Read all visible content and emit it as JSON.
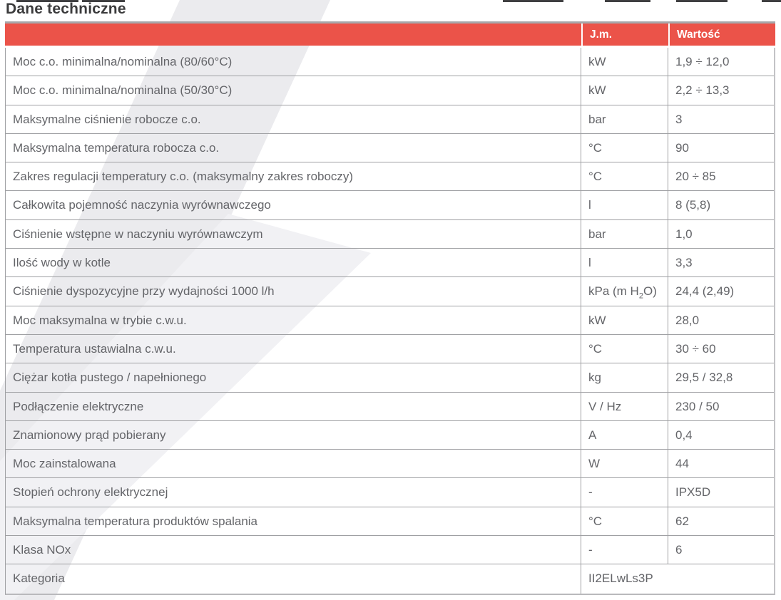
{
  "page": {
    "title": "Dane techniczne"
  },
  "table": {
    "headers": {
      "param": "",
      "unit": "J.m.",
      "value": "Wartość"
    },
    "colors": {
      "header_bg": "#eb5349",
      "header_text": "#ffffff",
      "body_text": "#646569",
      "grid_line": "#9fa0a3",
      "watermark_band": "#ebebee",
      "watermark_band_light": "#f1f1f4"
    },
    "rows": [
      {
        "param": "Moc c.o. minimalna/nominalna (80/60°C)",
        "unit": "kW",
        "value": "1,9 ÷ 12,0",
        "merged": false
      },
      {
        "param": "Moc c.o. minimalna/nominalna (50/30°C)",
        "unit": "kW",
        "value": "2,2 ÷ 13,3",
        "merged": false
      },
      {
        "param": "Maksymalne ciśnienie robocze c.o.",
        "unit": "bar",
        "value": "3",
        "merged": false
      },
      {
        "param": "Maksymalna temperatura robocza c.o.",
        "unit": "°C",
        "value": "90",
        "merged": false
      },
      {
        "param": "Zakres regulacji temperatury c.o. (maksymalny zakres roboczy)",
        "unit": "°C",
        "value": "20 ÷ 85",
        "merged": false
      },
      {
        "param": "Całkowita pojemność naczynia wyrównawczego",
        "unit": "l",
        "value": "8 (5,8)",
        "merged": false
      },
      {
        "param": "Ciśnienie wstępne w naczyniu wyrównawczym",
        "unit": "bar",
        "value": "1,0",
        "merged": false
      },
      {
        "param": "Ilość wody w kotle",
        "unit": "l",
        "value": "3,3",
        "merged": false
      },
      {
        "param": "Ciśnienie dyspozycyjne przy wydajności 1000 l/h",
        "unit": "kPa (m H₂O)",
        "value": "24,4 (2,49)",
        "merged": false
      },
      {
        "param": "Moc maksymalna w trybie c.w.u.",
        "unit": "kW",
        "value": "28,0",
        "merged": false
      },
      {
        "param": "Temperatura ustawialna c.w.u.",
        "unit": "°C",
        "value": "30 ÷ 60",
        "merged": false
      },
      {
        "param": "Ciężar kotła pustego / napełnionego",
        "unit": "kg",
        "value": "29,5 / 32,8",
        "merged": false
      },
      {
        "param": "Podłączenie elektryczne",
        "unit": "V / Hz",
        "value": "230 / 50",
        "merged": false
      },
      {
        "param": "Znamionowy prąd pobierany",
        "unit": "A",
        "value": "0,4",
        "merged": false
      },
      {
        "param": "Moc zainstalowana",
        "unit": "W",
        "value": "44",
        "merged": false
      },
      {
        "param": "Stopień ochrony elektrycznej",
        "unit": "-",
        "value": "IPX5D",
        "merged": false
      },
      {
        "param": "Maksymalna temperatura produktów spalania",
        "unit": "°C",
        "value": "62",
        "merged": false
      },
      {
        "param": "Klasa NOx",
        "unit": "-",
        "value": "6",
        "merged": false
      },
      {
        "param": "Kategoria",
        "unit": "",
        "value": "II2ELwLs3P",
        "merged": true
      }
    ]
  }
}
